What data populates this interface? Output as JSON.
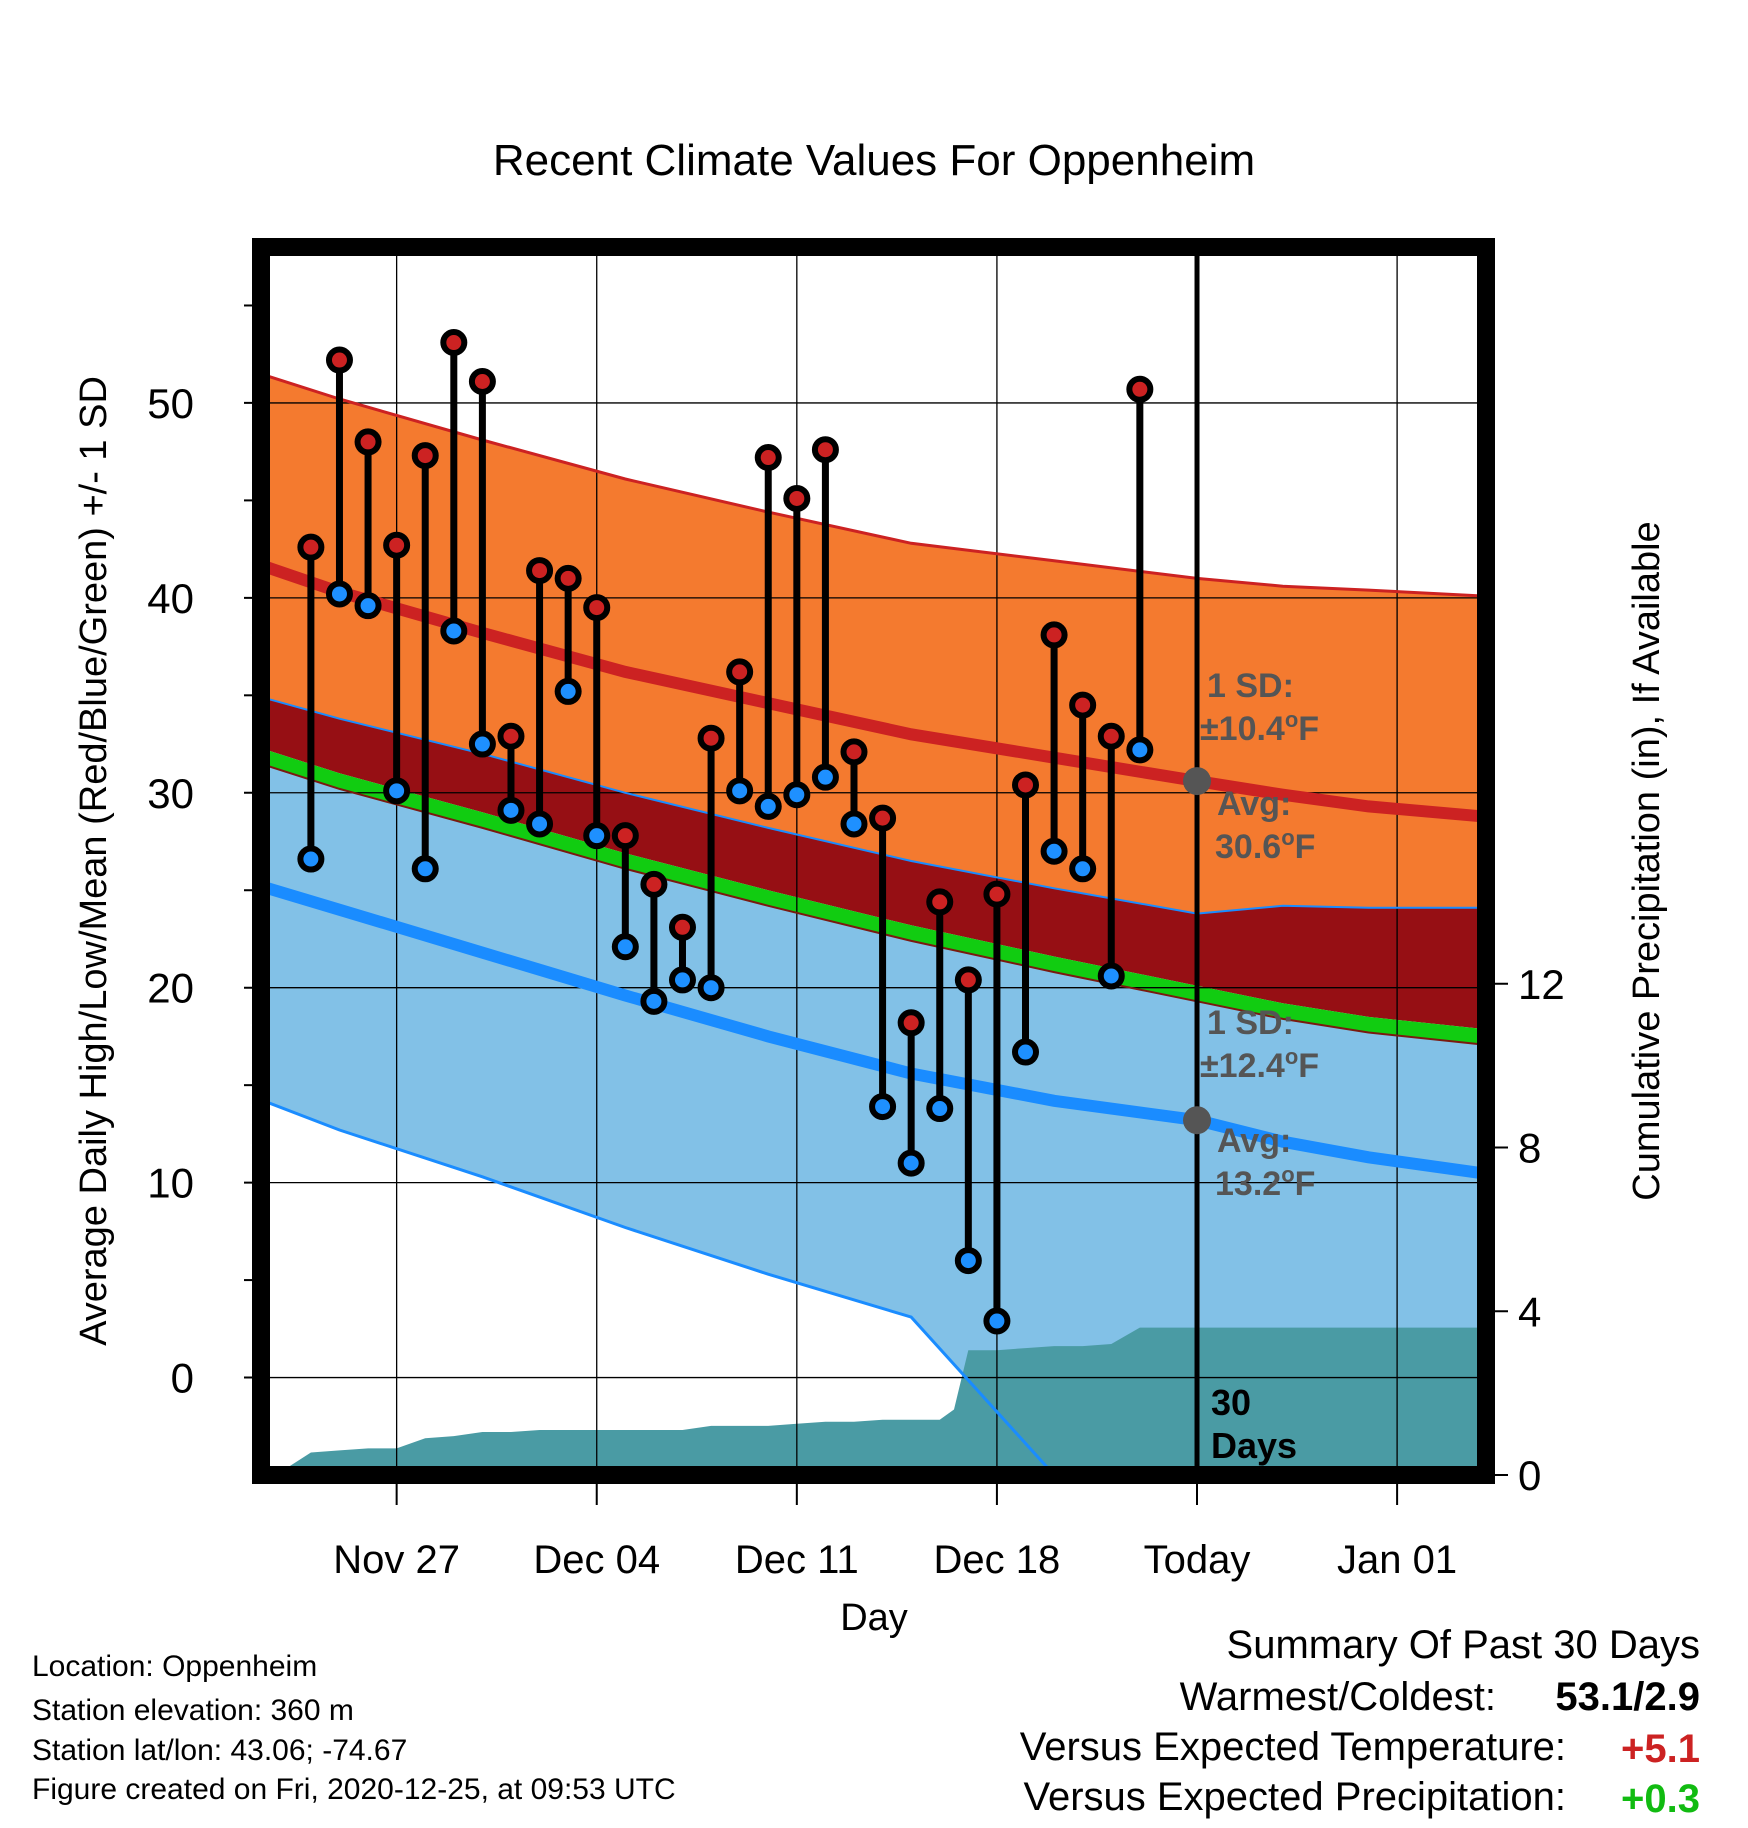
{
  "colors": {
    "high_band": "#f47a2f",
    "high_line": "#cc2222",
    "gap_band": "#960f14",
    "mean_band": "#11cc11",
    "low_band": "#82c1e7",
    "low_line": "#1a8cff",
    "precip": "#4a9ba4",
    "high_marker": "#cc2222",
    "low_marker": "#1e90ff",
    "avg_marker": "#555555",
    "positive_temp": "#cc2222",
    "positive_precip": "#11bb11"
  },
  "chart_data": {
    "type": "line",
    "title": "Recent Climate Values For Oppenheim",
    "xlabel": "Day",
    "ylabel": "Average Daily High/Low/Mean (Red/Blue/Green) +/- 1 SD",
    "y2label": "Cumulative Precipitation (in), If Available",
    "ylim": [
      -5,
      58
    ],
    "y2lim": [
      0,
      30
    ],
    "y_ticks": [
      0,
      10,
      20,
      30,
      40,
      50
    ],
    "y2_ticks": [
      0,
      4,
      8,
      12
    ],
    "x_day_range": [
      -33.2,
      9.9
    ],
    "x_ticks": [
      {
        "day": -28,
        "label": "Nov 27"
      },
      {
        "day": -21,
        "label": "Dec 04"
      },
      {
        "day": -14,
        "label": "Dec 11"
      },
      {
        "day": -7,
        "label": "Dec 18"
      },
      {
        "day": 0,
        "label": "Today"
      },
      {
        "day": 7,
        "label": "Jan 01"
      }
    ],
    "grid": true,
    "today_marker": {
      "day": 0,
      "label_line1": "30",
      "label_line2": "Days"
    },
    "normals_x": [
      -33.2,
      -30,
      -25,
      -20,
      -15,
      -10,
      -5,
      0,
      3,
      6,
      9.9
    ],
    "normal_high_plus_sd": [
      51.7,
      50.2,
      48.1,
      46.1,
      44.4,
      42.8,
      41.9,
      41.0,
      40.6,
      40.4,
      40.1
    ],
    "normal_high": [
      41.9,
      40.3,
      38.2,
      36.2,
      34.6,
      33.0,
      31.8,
      30.6,
      29.9,
      29.3,
      28.8
    ],
    "normal_high_minus_sd": [
      35.1,
      33.8,
      32.0,
      30.0,
      28.2,
      26.5,
      25.1,
      23.8,
      24.2,
      24.1,
      24.1
    ],
    "normal_mean_upper": [
      32.5,
      31.0,
      29.0,
      26.9,
      25.0,
      23.2,
      21.6,
      20.1,
      19.2,
      18.5,
      17.9
    ],
    "normal_mean_lower": [
      31.7,
      30.2,
      28.2,
      26.1,
      24.2,
      22.4,
      20.8,
      19.3,
      18.4,
      17.7,
      17.1
    ],
    "normal_low_plus_sd": [
      31.7,
      30.2,
      28.2,
      26.1,
      24.2,
      22.4,
      20.8,
      19.3,
      18.4,
      17.7,
      17.1
    ],
    "normal_low": [
      25.4,
      24.0,
      21.8,
      19.6,
      17.5,
      15.6,
      14.2,
      13.2,
      12.1,
      11.3,
      10.5
    ],
    "normal_low_minus_sd": [
      14.5,
      12.7,
      10.3,
      7.7,
      5.3,
      3.1,
      -5,
      -5,
      -5,
      -5,
      -5
    ],
    "precip_days": [
      -32.6,
      -32.0,
      -31.0,
      -30.0,
      -29.0,
      -28.0,
      -27.0,
      -26.0,
      -25.0,
      -24.0,
      -23.0,
      -22.0,
      -21.0,
      -20.0,
      -19.0,
      -18.0,
      -17.0,
      -16.0,
      -15.0,
      -14.0,
      -13.0,
      -12.0,
      -11.0,
      -10.0,
      -9.0,
      -8.5,
      -8.0,
      -7.0,
      -6.0,
      -5.0,
      -4.0,
      -3.0,
      -2.0,
      -1.0,
      9.9
    ],
    "precip_cumulative": [
      0.0,
      0.1,
      0.55,
      0.6,
      0.65,
      0.65,
      0.9,
      0.95,
      1.05,
      1.05,
      1.1,
      1.1,
      1.1,
      1.1,
      1.1,
      1.1,
      1.2,
      1.2,
      1.2,
      1.25,
      1.3,
      1.3,
      1.35,
      1.35,
      1.35,
      1.6,
      3.05,
      3.05,
      3.1,
      3.15,
      3.15,
      3.2,
      3.6,
      3.6,
      3.6
    ],
    "observations": [
      {
        "day": -31,
        "high": 42.6,
        "low": 26.6
      },
      {
        "day": -30,
        "high": 52.2,
        "low": 40.2
      },
      {
        "day": -29,
        "high": 48.0,
        "low": 39.6
      },
      {
        "day": -28,
        "high": 42.7,
        "low": 30.1
      },
      {
        "day": -27,
        "high": 47.3,
        "low": 26.1
      },
      {
        "day": -26,
        "high": 53.1,
        "low": 38.3
      },
      {
        "day": -25,
        "high": 51.1,
        "low": 32.5
      },
      {
        "day": -24,
        "high": 32.9,
        "low": 29.1
      },
      {
        "day": -23,
        "high": 41.4,
        "low": 28.4
      },
      {
        "day": -22,
        "high": 41.0,
        "low": 35.2
      },
      {
        "day": -21,
        "high": 39.5,
        "low": 27.8
      },
      {
        "day": -20,
        "high": 27.8,
        "low": 22.1
      },
      {
        "day": -19,
        "high": 25.3,
        "low": 19.3
      },
      {
        "day": -18,
        "high": 23.1,
        "low": 20.4
      },
      {
        "day": -17,
        "high": 32.8,
        "low": 20.0
      },
      {
        "day": -16,
        "high": 36.2,
        "low": 30.1
      },
      {
        "day": -15,
        "high": 47.2,
        "low": 29.3
      },
      {
        "day": -14,
        "high": 45.1,
        "low": 29.9
      },
      {
        "day": -13,
        "high": 47.6,
        "low": 30.8
      },
      {
        "day": -12,
        "high": 32.1,
        "low": 28.4
      },
      {
        "day": -11,
        "high": 28.7,
        "low": 13.9
      },
      {
        "day": -10,
        "high": 18.2,
        "low": 11.0
      },
      {
        "day": -9,
        "high": 24.4,
        "low": 13.8
      },
      {
        "day": -8,
        "high": 20.4,
        "low": 6.0
      },
      {
        "day": -7,
        "high": 24.8,
        "low": 2.9
      },
      {
        "day": -6,
        "high": 30.4,
        "low": 16.7
      },
      {
        "day": -5,
        "high": 38.1,
        "low": 27.0
      },
      {
        "day": -4,
        "high": 34.5,
        "low": 26.1
      },
      {
        "day": -3,
        "high": 32.9,
        "low": 20.6
      },
      {
        "day": -2,
        "high": 50.7,
        "low": 32.2
      }
    ],
    "high_annotation": {
      "line1": "1 SD:",
      "line2": "±10.4",
      "deg": "o",
      "unit": "F",
      "avg_label": "Avg:",
      "avg_value": "30.6",
      "avg": 30.6
    },
    "low_annotation": {
      "line1": "1 SD:",
      "line2": "±12.4",
      "deg": "o",
      "unit": "F",
      "avg_label": "Avg:",
      "avg_value": "13.2",
      "avg": 13.2
    }
  },
  "station": {
    "location": "Location: Oppenheim",
    "elevation": "Station elevation: 360 m",
    "latlon": "Station lat/lon: 43.06; -74.67",
    "created": "Figure created on Fri, 2020-12-25, at 09:53 UTC"
  },
  "summary": {
    "title": "Summary Of Past 30 Days",
    "warmest_coldest_label": "Warmest/Coldest:",
    "warmest_coldest_value": "53.1/2.9",
    "temp_label": "Versus Expected Temperature:",
    "temp_value": "+5.1",
    "precip_label": "Versus Expected Precipitation:",
    "precip_value": "+0.3"
  }
}
